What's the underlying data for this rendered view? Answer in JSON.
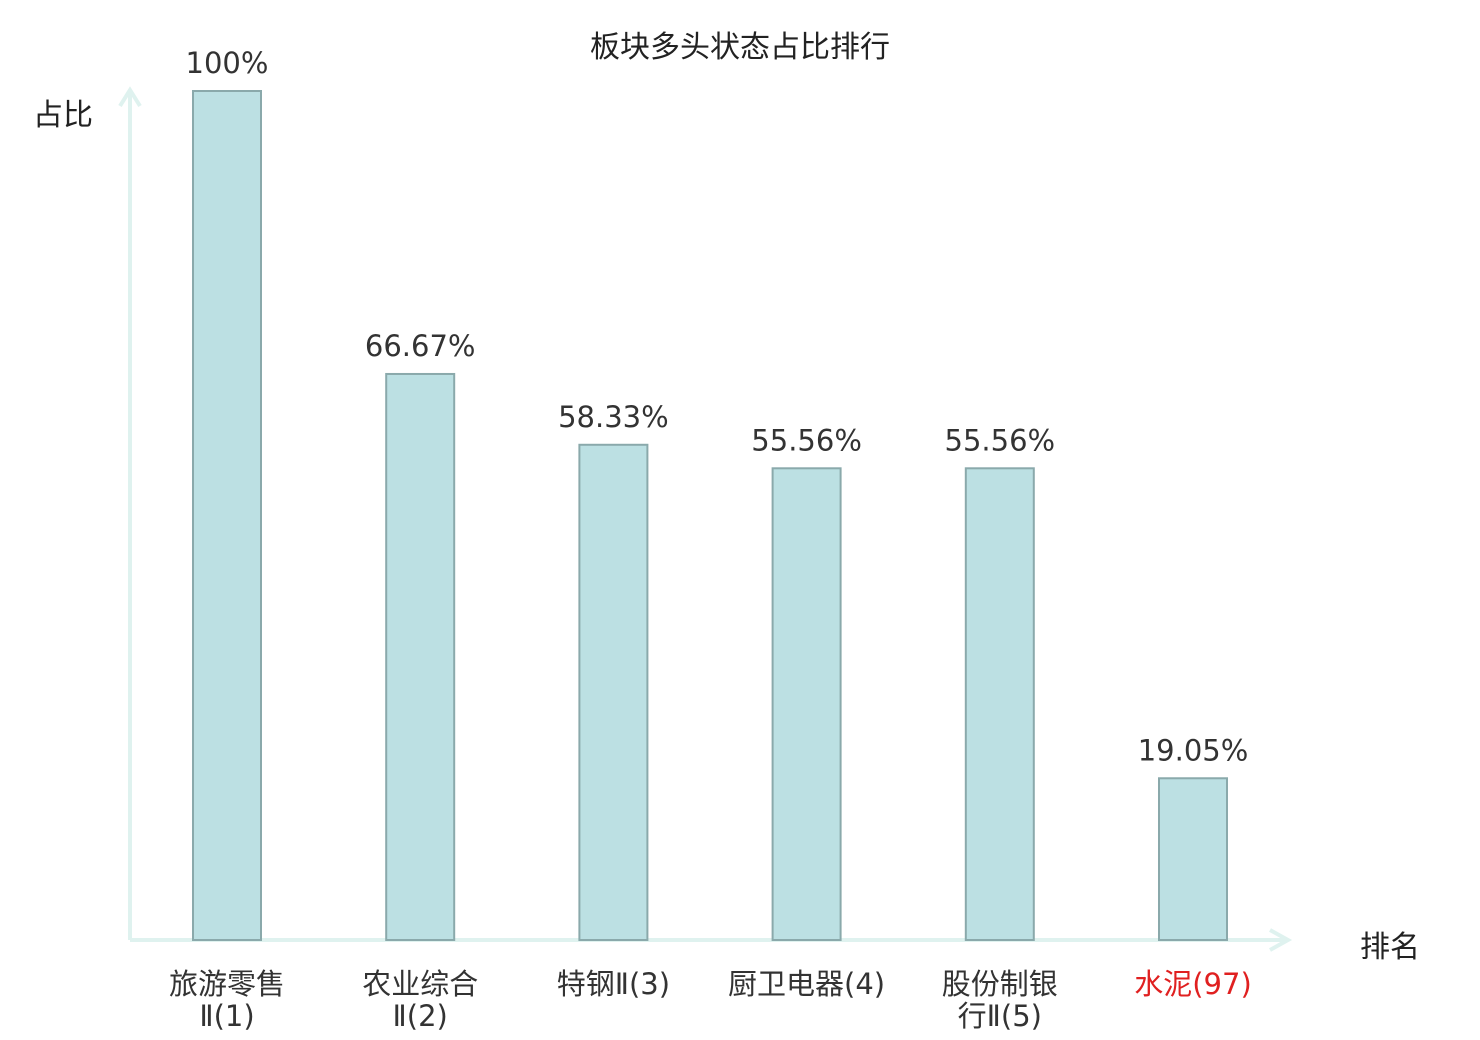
{
  "chart_data": {
    "type": "bar",
    "title": "板块多头状态占比排行",
    "ylabel": "占比",
    "xlabel": "排名",
    "ylim": [
      0,
      100
    ],
    "categories": [
      {
        "name": "旅游零售Ⅱ",
        "rank": "(1)",
        "highlight": false
      },
      {
        "name": "农业综合Ⅱ",
        "rank": "(2)",
        "highlight": false
      },
      {
        "name": "特钢Ⅱ",
        "rank": "(3)",
        "highlight": false
      },
      {
        "name": "厨卫电器",
        "rank": "(4)",
        "highlight": false
      },
      {
        "name": "股份制银行Ⅱ",
        "rank": "(5)",
        "highlight": false
      },
      {
        "name": "水泥",
        "rank": "(97)",
        "highlight": true
      }
    ],
    "values": [
      100,
      66.67,
      58.33,
      55.56,
      55.56,
      19.05
    ],
    "value_labels": [
      "100%",
      "66.67%",
      "58.33%",
      "55.56%",
      "55.56%",
      "19.05%"
    ],
    "colors": {
      "bar_fill": "#bce0e3",
      "bar_stroke": "#8aa9ab",
      "axis": "#dff2ef",
      "text": "#333333",
      "highlight": "#e02020"
    }
  }
}
